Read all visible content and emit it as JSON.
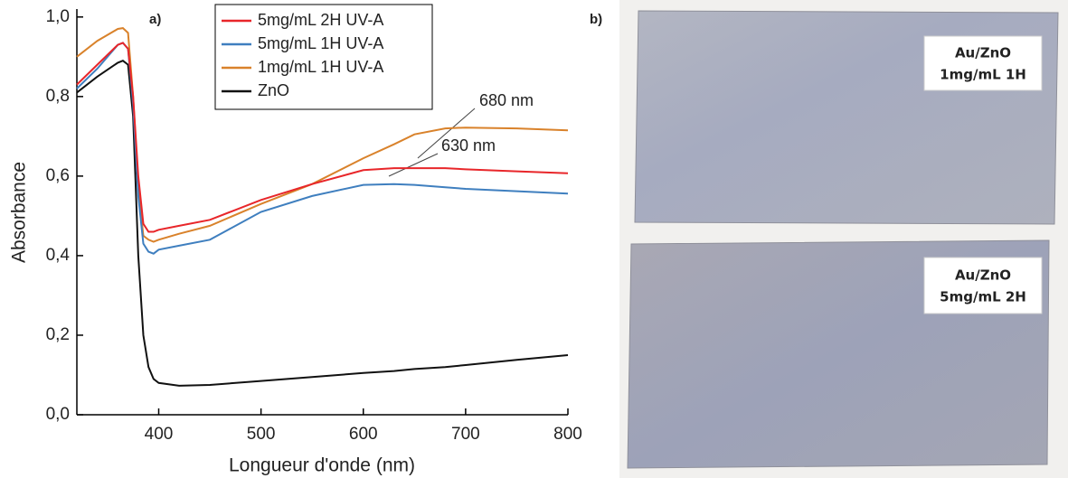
{
  "chart_data": {
    "type": "line",
    "panel_label": "a)",
    "x_label": "Longueur d'onde (nm)",
    "y_label": "Absorbance",
    "xlim": [
      320,
      800
    ],
    "ylim": [
      0,
      1.02
    ],
    "xticks": [
      400,
      500,
      600,
      700,
      800
    ],
    "yticks": [
      {
        "value": 0,
        "label": "0,0"
      },
      {
        "value": 0.2,
        "label": "0,2"
      },
      {
        "value": 0.4,
        "label": "0,4"
      },
      {
        "value": 0.6,
        "label": "0,6"
      },
      {
        "value": 0.8,
        "label": "0,8"
      },
      {
        "value": 1.0,
        "label": "1,0"
      }
    ],
    "grid": false,
    "legend": "top",
    "x": [
      320,
      340,
      360,
      365,
      370,
      375,
      380,
      385,
      390,
      395,
      400,
      420,
      450,
      500,
      550,
      600,
      630,
      650,
      680,
      700,
      750,
      800
    ],
    "series": [
      {
        "name": "5mg/mL 2H UV-A",
        "color": "#e8262a",
        "values": [
          0.83,
          0.88,
          0.93,
          0.935,
          0.92,
          0.8,
          0.6,
          0.48,
          0.46,
          0.46,
          0.465,
          0.475,
          0.49,
          0.54,
          0.58,
          0.615,
          0.62,
          0.62,
          0.62,
          0.617,
          0.612,
          0.607
        ]
      },
      {
        "name": "5mg/mL 1H UV-A",
        "color": "#3f7fbf",
        "values": [
          0.82,
          0.87,
          0.93,
          0.935,
          0.92,
          0.78,
          0.55,
          0.43,
          0.41,
          0.405,
          0.415,
          0.425,
          0.44,
          0.51,
          0.55,
          0.578,
          0.58,
          0.578,
          0.572,
          0.568,
          0.562,
          0.556
        ]
      },
      {
        "name": "1mg/mL 1H UV-A",
        "color": "#d9822b",
        "values": [
          0.9,
          0.94,
          0.97,
          0.972,
          0.96,
          0.8,
          0.57,
          0.45,
          0.44,
          0.435,
          0.44,
          0.455,
          0.475,
          0.53,
          0.58,
          0.645,
          0.68,
          0.705,
          0.72,
          0.722,
          0.72,
          0.715
        ]
      },
      {
        "name": "ZnO",
        "color": "#111111",
        "values": [
          0.81,
          0.85,
          0.885,
          0.89,
          0.88,
          0.75,
          0.4,
          0.2,
          0.12,
          0.09,
          0.08,
          0.073,
          0.075,
          0.085,
          0.095,
          0.105,
          0.11,
          0.115,
          0.12,
          0.125,
          0.138,
          0.15
        ]
      }
    ],
    "annotations": [
      "680 nm",
      "630 nm"
    ]
  },
  "photo": {
    "panel_label": "b)",
    "samples": [
      {
        "lines": [
          "Au/ZnO",
          "1mg/mL 1H"
        ]
      },
      {
        "lines": [
          "Au/ZnO",
          "5mg/mL 2H"
        ]
      }
    ]
  }
}
